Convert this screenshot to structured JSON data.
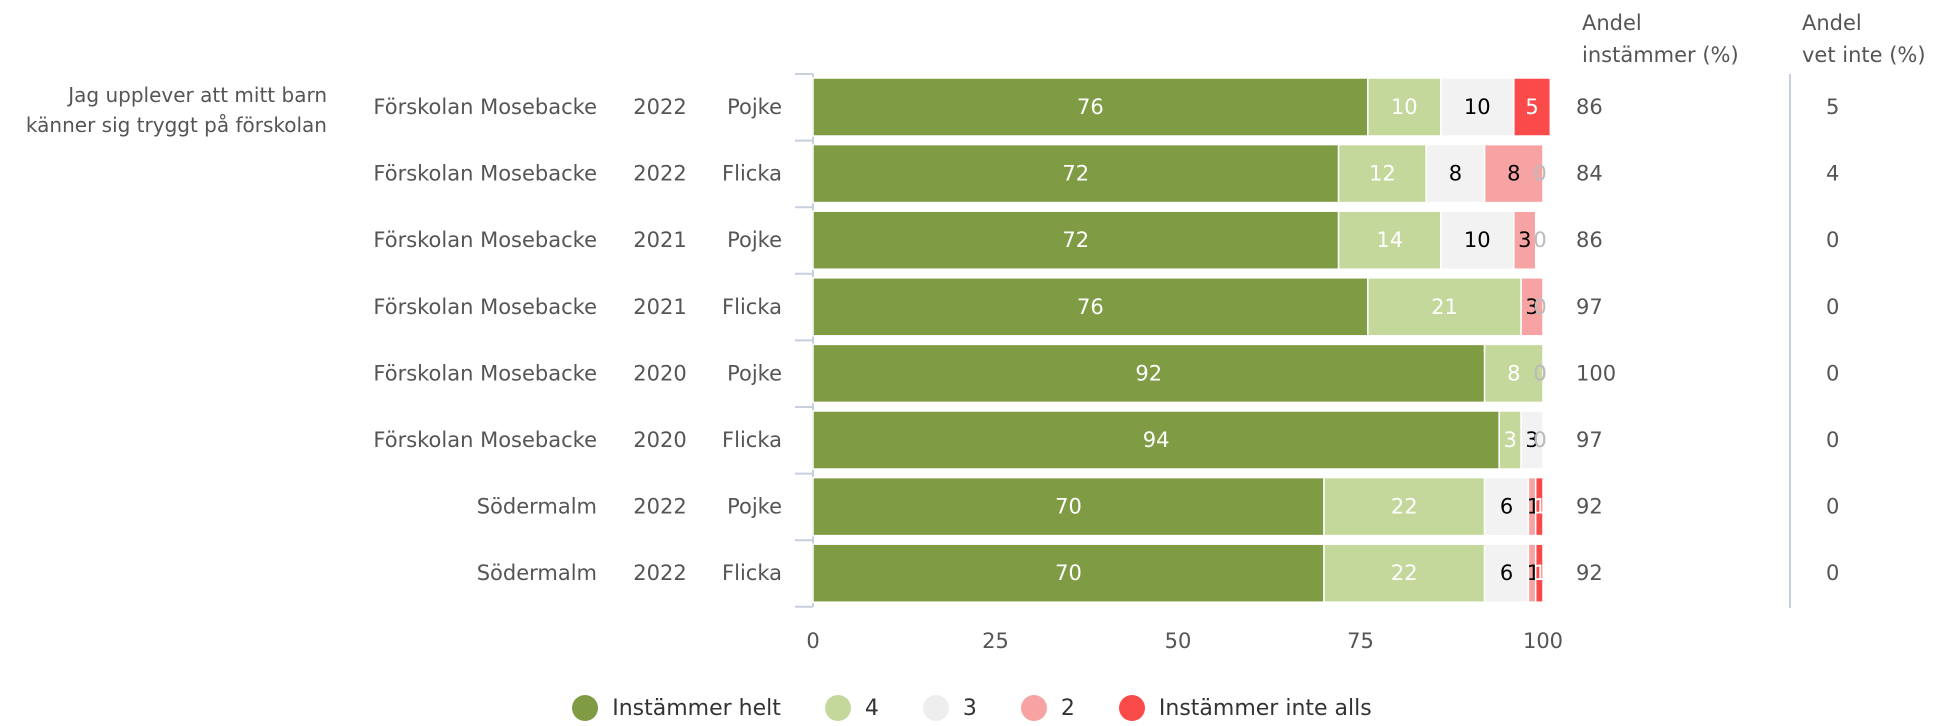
{
  "question": [
    "Jag upplever att mitt barn",
    "känner sig tryggt på förskolan"
  ],
  "column_headers": {
    "instammer": [
      "Andel",
      "instämmer (%)"
    ],
    "vet_inte": [
      "Andel",
      "vet inte (%)"
    ]
  },
  "chart_data": {
    "type": "bar",
    "orientation": "horizontal",
    "stacked": true,
    "xlim": [
      0,
      100
    ],
    "xticks": [
      0,
      25,
      50,
      75,
      100
    ],
    "rows": [
      {
        "school": "Förskolan Mosebacke",
        "year": "2022",
        "gender": "Pojke",
        "values": [
          76,
          10,
          10,
          0,
          5
        ],
        "instammer": "86",
        "vet_inte": "5"
      },
      {
        "school": "Förskolan Mosebacke",
        "year": "2022",
        "gender": "Flicka",
        "values": [
          72,
          12,
          8,
          8,
          0
        ],
        "instammer": "84",
        "vet_inte": "4"
      },
      {
        "school": "Förskolan Mosebacke",
        "year": "2021",
        "gender": "Pojke",
        "values": [
          72,
          14,
          10,
          3,
          0
        ],
        "instammer": "86",
        "vet_inte": "0"
      },
      {
        "school": "Förskolan Mosebacke",
        "year": "2021",
        "gender": "Flicka",
        "values": [
          76,
          21,
          0,
          3,
          0
        ],
        "instammer": "97",
        "vet_inte": "0"
      },
      {
        "school": "Förskolan Mosebacke",
        "year": "2020",
        "gender": "Pojke",
        "values": [
          92,
          8,
          0,
          0,
          0
        ],
        "instammer": "100",
        "vet_inte": "0"
      },
      {
        "school": "Förskolan Mosebacke",
        "year": "2020",
        "gender": "Flicka",
        "values": [
          94,
          3,
          3,
          0,
          0
        ],
        "instammer": "97",
        "vet_inte": "0"
      },
      {
        "school": "Södermalm",
        "year": "2022",
        "gender": "Pojke",
        "values": [
          70,
          22,
          6,
          1,
          1
        ],
        "instammer": "92",
        "vet_inte": "0"
      },
      {
        "school": "Södermalm",
        "year": "2022",
        "gender": "Flicka",
        "values": [
          70,
          22,
          6,
          1,
          1
        ],
        "instammer": "92",
        "vet_inte": "0"
      }
    ],
    "series": [
      {
        "name": "Instämmer helt",
        "color": "#7f9c45",
        "label_color": "#ffffff"
      },
      {
        "name": "4",
        "color": "#c4d89b",
        "label_color": "#ffffff"
      },
      {
        "name": "3",
        "color": "#f2f2f2",
        "label_color": "#000000"
      },
      {
        "name": "2",
        "color": "#f7a3a3",
        "label_color": "#000000"
      },
      {
        "name": "Instämmer inte alls",
        "color": "#fa4a4a",
        "label_color": "#ffffff"
      }
    ]
  }
}
